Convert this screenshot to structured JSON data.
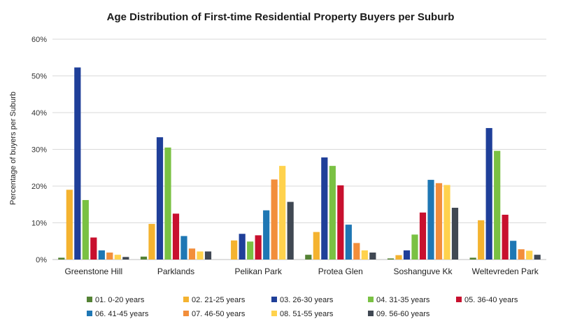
{
  "chart_data": {
    "type": "bar",
    "title": "Age Distribution of First-time Residential Property Buyers per Suburb",
    "xlabel": "",
    "ylabel": "Percentage of buyers per Suburb",
    "ylim": [
      0,
      60
    ],
    "yticks": [
      "0%",
      "10%",
      "20%",
      "30%",
      "40%",
      "50%",
      "60%"
    ],
    "grid": true,
    "legend_position": "bottom",
    "categories": [
      "Greenstone Hill",
      "Parklands",
      "Pelikan Park",
      "Protea Glen",
      "Soshanguve Kk",
      "Weltevreden Park"
    ],
    "series": [
      {
        "name": "01. 0-20 years",
        "color": "#548235",
        "values": [
          0.5,
          0.8,
          0.0,
          1.3,
          0.3,
          0.5
        ]
      },
      {
        "name": "02. 21-25 years",
        "color": "#f4b330",
        "values": [
          19.0,
          9.7,
          5.2,
          7.5,
          1.2,
          10.7
        ]
      },
      {
        "name": "03. 26-30 years",
        "color": "#1f3f99",
        "values": [
          52.3,
          33.3,
          7.0,
          27.8,
          2.5,
          35.8
        ]
      },
      {
        "name": "04. 31-35 years",
        "color": "#7ac143",
        "values": [
          16.2,
          30.5,
          4.9,
          25.5,
          6.8,
          29.6
        ]
      },
      {
        "name": "05. 36-40 years",
        "color": "#c8102e",
        "values": [
          6.0,
          12.5,
          6.6,
          20.2,
          12.8,
          12.2
        ]
      },
      {
        "name": "06. 41-45 years",
        "color": "#1f77b4",
        "values": [
          2.5,
          6.4,
          13.4,
          9.5,
          21.7,
          5.1
        ]
      },
      {
        "name": "07. 46-50 years",
        "color": "#f28e3b",
        "values": [
          1.9,
          3.0,
          21.8,
          4.5,
          20.8,
          2.8
        ]
      },
      {
        "name": "08. 51-55 years",
        "color": "#ffd24d",
        "values": [
          1.3,
          2.2,
          25.5,
          2.5,
          20.3,
          2.4
        ]
      },
      {
        "name": "09. 56-60 years",
        "color": "#404853",
        "values": [
          0.7,
          2.2,
          15.7,
          1.9,
          14.1,
          1.3
        ]
      }
    ]
  }
}
